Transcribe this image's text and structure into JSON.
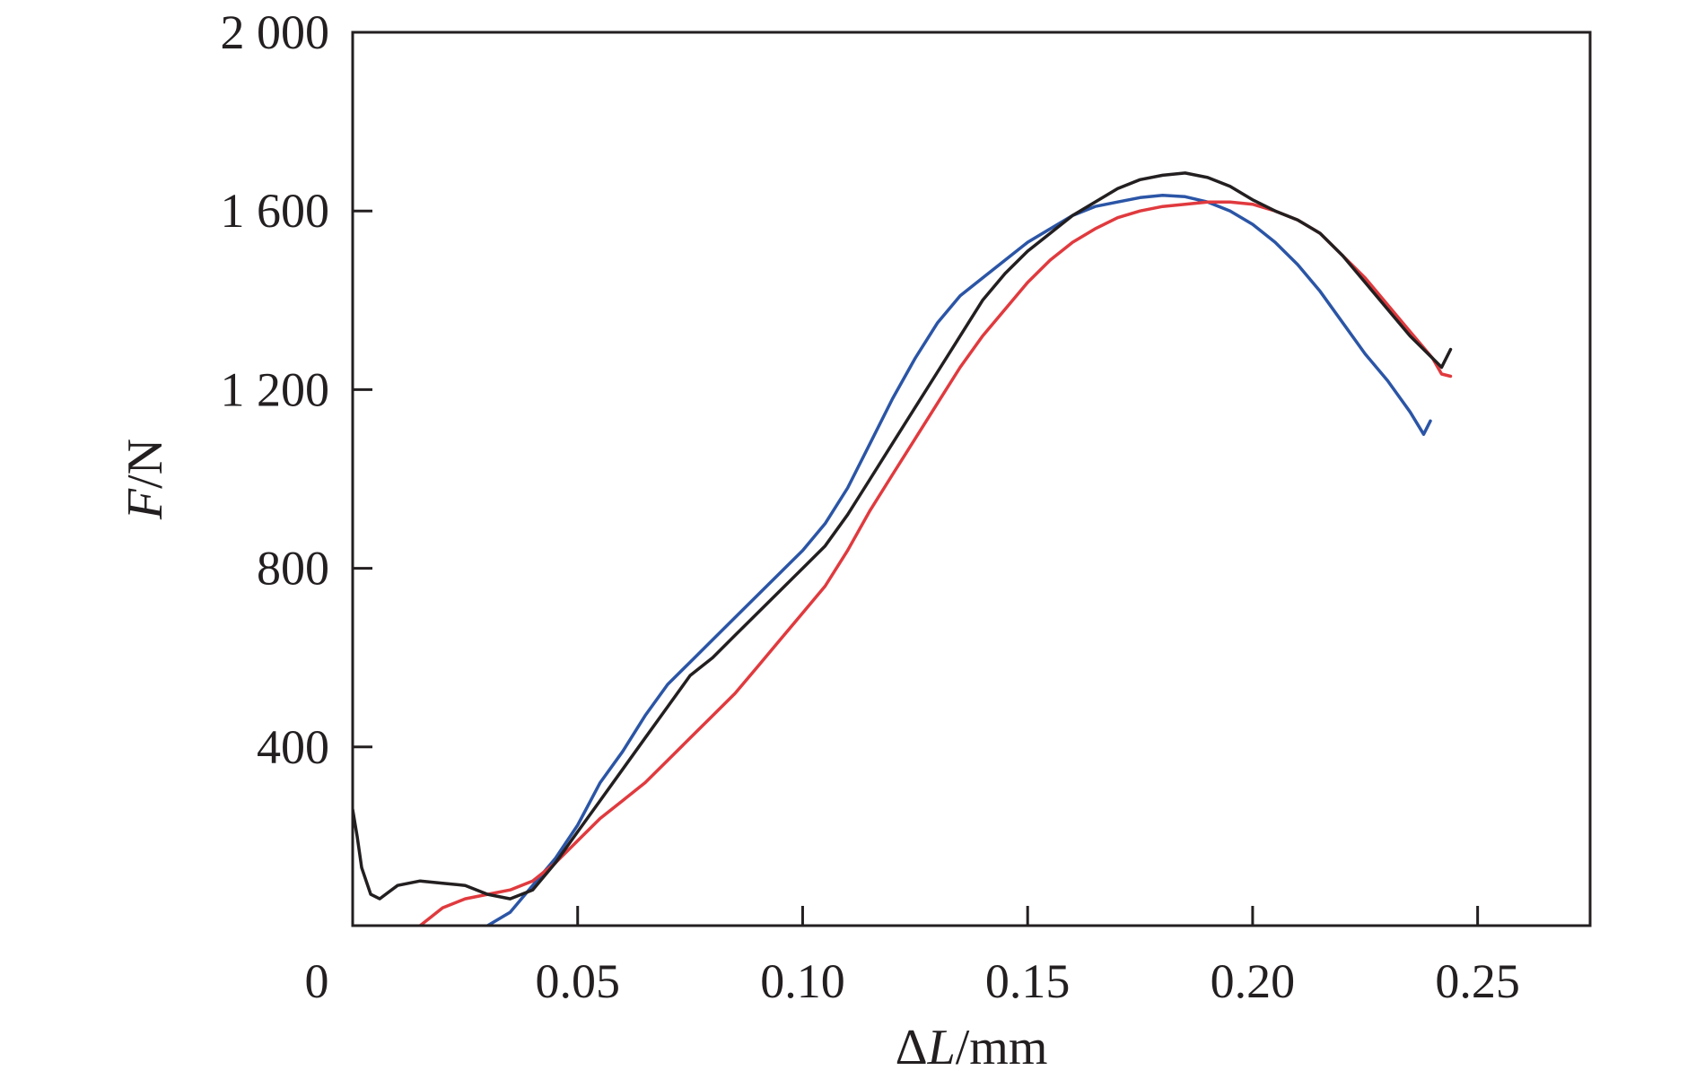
{
  "chart_data": {
    "type": "line",
    "xlabel": "ΔL/mm",
    "ylabel": "F/N",
    "xlim": [
      0,
      0.275
    ],
    "ylim": [
      0,
      2000
    ],
    "x_ticks": [
      {
        "value": 0,
        "label": "0"
      },
      {
        "value": 0.05,
        "label": "0.05"
      },
      {
        "value": 0.1,
        "label": "0.10"
      },
      {
        "value": 0.15,
        "label": "0.15"
      },
      {
        "value": 0.2,
        "label": "0.20"
      },
      {
        "value": 0.25,
        "label": "0.25"
      }
    ],
    "y_ticks": [
      {
        "value": 400,
        "label": "400"
      },
      {
        "value": 800,
        "label": "800"
      },
      {
        "value": 1200,
        "label": "1 200"
      },
      {
        "value": 1600,
        "label": "1 600"
      },
      {
        "value": 2000,
        "label": "2 000"
      }
    ],
    "grid": false,
    "series": [
      {
        "color": "#2b55a6",
        "x": [
          0.03,
          0.035,
          0.04,
          0.045,
          0.05,
          0.055,
          0.06,
          0.065,
          0.07,
          0.075,
          0.08,
          0.085,
          0.09,
          0.095,
          0.1,
          0.105,
          0.11,
          0.115,
          0.12,
          0.125,
          0.13,
          0.135,
          0.14,
          0.145,
          0.15,
          0.155,
          0.16,
          0.165,
          0.17,
          0.175,
          0.18,
          0.185,
          0.19,
          0.195,
          0.2,
          0.205,
          0.21,
          0.215,
          0.22,
          0.225,
          0.23,
          0.235,
          0.238,
          0.2395
        ],
        "values": [
          0,
          30,
          90,
          150,
          225,
          320,
          390,
          470,
          540,
          590,
          640,
          690,
          740,
          790,
          840,
          900,
          980,
          1080,
          1180,
          1270,
          1350,
          1410,
          1450,
          1490,
          1530,
          1560,
          1590,
          1610,
          1620,
          1630,
          1635,
          1632,
          1620,
          1600,
          1570,
          1530,
          1480,
          1420,
          1350,
          1280,
          1220,
          1150,
          1100,
          1130
        ]
      },
      {
        "color": "#e03a3e",
        "x": [
          0.015,
          0.02,
          0.025,
          0.03,
          0.035,
          0.04,
          0.045,
          0.05,
          0.055,
          0.06,
          0.065,
          0.07,
          0.075,
          0.08,
          0.085,
          0.09,
          0.095,
          0.1,
          0.105,
          0.11,
          0.115,
          0.12,
          0.125,
          0.13,
          0.135,
          0.14,
          0.145,
          0.15,
          0.155,
          0.16,
          0.165,
          0.17,
          0.175,
          0.18,
          0.185,
          0.19,
          0.195,
          0.2,
          0.205,
          0.21,
          0.215,
          0.22,
          0.225,
          0.23,
          0.235,
          0.24,
          0.242,
          0.244
        ],
        "values": [
          0,
          40,
          60,
          70,
          80,
          100,
          140,
          190,
          240,
          280,
          320,
          370,
          420,
          470,
          520,
          580,
          640,
          700,
          760,
          840,
          930,
          1010,
          1090,
          1170,
          1250,
          1320,
          1380,
          1440,
          1490,
          1530,
          1560,
          1585,
          1600,
          1610,
          1615,
          1620,
          1620,
          1615,
          1600,
          1580,
          1550,
          1500,
          1450,
          1390,
          1330,
          1270,
          1235,
          1230
        ]
      },
      {
        "color": "#231f20",
        "x": [
          0.0,
          0.001,
          0.002,
          0.004,
          0.006,
          0.008,
          0.01,
          0.015,
          0.02,
          0.025,
          0.03,
          0.035,
          0.04,
          0.045,
          0.05,
          0.055,
          0.06,
          0.065,
          0.07,
          0.075,
          0.08,
          0.085,
          0.09,
          0.095,
          0.1,
          0.105,
          0.11,
          0.115,
          0.12,
          0.125,
          0.13,
          0.135,
          0.14,
          0.145,
          0.15,
          0.155,
          0.16,
          0.165,
          0.17,
          0.175,
          0.18,
          0.185,
          0.19,
          0.195,
          0.2,
          0.205,
          0.21,
          0.215,
          0.22,
          0.225,
          0.23,
          0.235,
          0.24,
          0.242,
          0.244
        ],
        "values": [
          260,
          200,
          130,
          70,
          60,
          75,
          90,
          100,
          95,
          90,
          70,
          60,
          80,
          140,
          210,
          280,
          350,
          420,
          490,
          560,
          600,
          650,
          700,
          750,
          800,
          850,
          920,
          1000,
          1080,
          1160,
          1240,
          1320,
          1400,
          1460,
          1510,
          1550,
          1590,
          1620,
          1650,
          1670,
          1680,
          1685,
          1675,
          1655,
          1625,
          1600,
          1580,
          1550,
          1500,
          1440,
          1380,
          1320,
          1270,
          1250,
          1290
        ]
      }
    ]
  }
}
